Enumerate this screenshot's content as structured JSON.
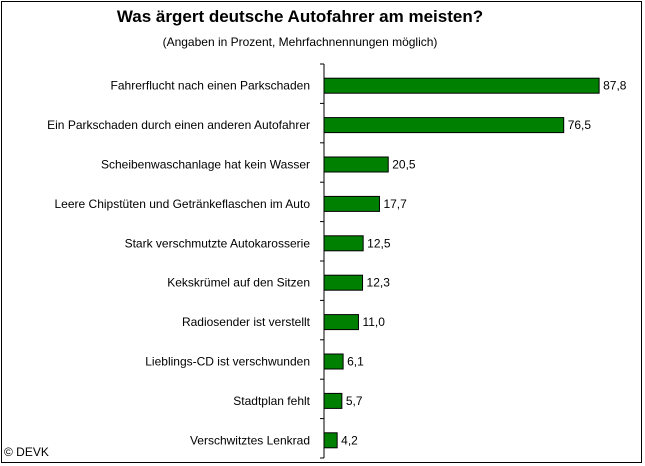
{
  "chart_data": {
    "type": "bar",
    "orientation": "horizontal",
    "title": "Was ärgert deutsche Autofahrer am meisten?",
    "subtitle": "(Angaben in Prozent, Mehrfachnennungen möglich)",
    "categories": [
      "Fahrerflucht nach einen Parkschaden",
      "Ein Parkschaden durch einen anderen Autofahrer",
      "Scheibenwaschanlage hat kein Wasser",
      "Leere Chipstüten und Getränkeflaschen im Auto",
      "Stark verschmutzte Autokarosserie",
      "Kekskrümel auf den Sitzen",
      "Radiosender ist verstellt",
      "Lieblings-CD ist verschwunden",
      "Stadtplan fehlt",
      "Verschwitztes Lenkrad"
    ],
    "values": [
      87.8,
      76.5,
      20.5,
      17.7,
      12.5,
      12.3,
      11.0,
      6.1,
      5.7,
      4.2
    ],
    "value_labels": [
      "87,8",
      "76,5",
      "20,5",
      "17,7",
      "12,5",
      "12,3",
      "11,0",
      "6,1",
      "5,7",
      "4,2"
    ],
    "xlim": [
      0,
      90
    ],
    "bar_color": "#008000",
    "grid": false,
    "legend": "none"
  },
  "credit": "© DEVK"
}
